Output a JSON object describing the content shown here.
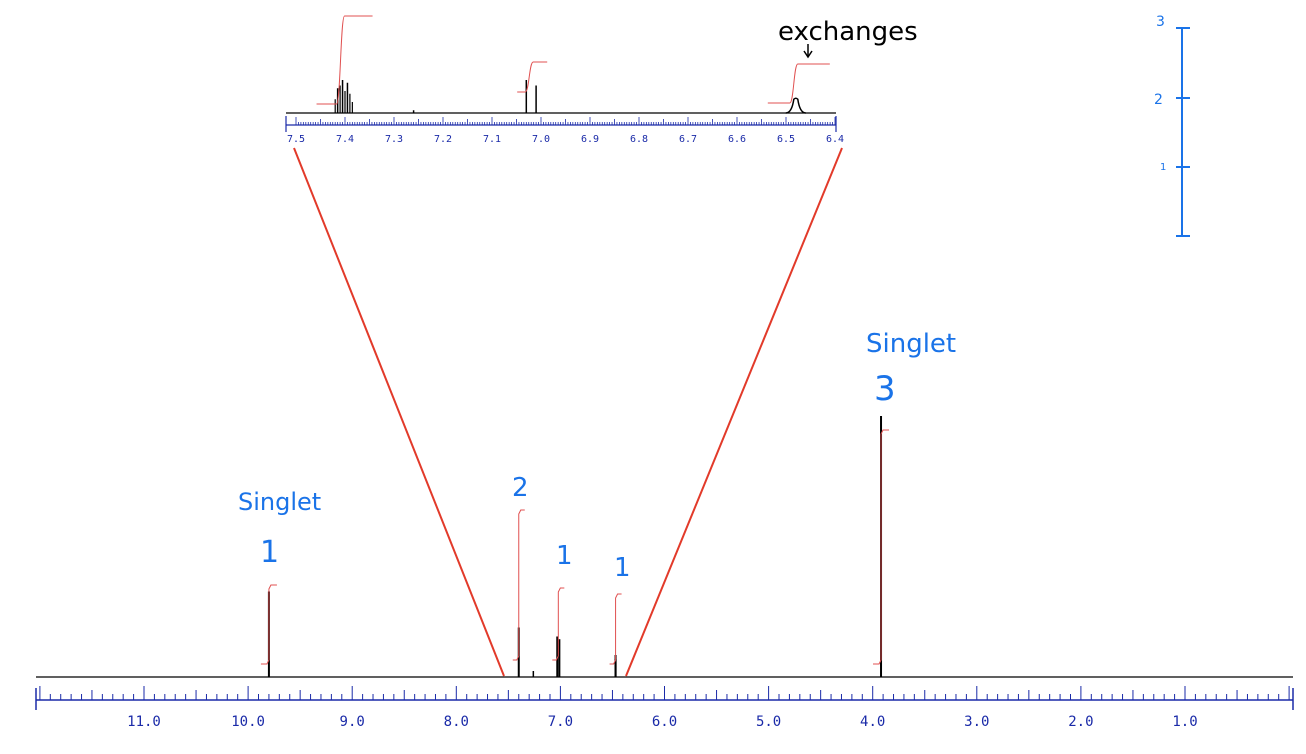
{
  "chart_data": {
    "type": "line",
    "main": {
      "xaxis_labels": [
        "11.0",
        "10.0",
        "9.0",
        "8.0",
        "7.0",
        "6.0",
        "5.0",
        "4.0",
        "3.0",
        "2.0",
        "1.0"
      ],
      "xlim": [
        12.0,
        0.0
      ],
      "axis_reversed": true,
      "peaks": [
        {
          "ppm": 9.8,
          "height": 0.95,
          "multiplicity": "Singlet",
          "integration": "1"
        },
        {
          "ppm": 7.4,
          "height": 0.55,
          "multiplicity": "",
          "integration": "2"
        },
        {
          "ppm": 7.03,
          "height": 0.45,
          "multiplicity": "",
          "integration": "1"
        },
        {
          "ppm": 7.01,
          "height": 0.42,
          "multiplicity": "",
          "integration": ""
        },
        {
          "ppm": 6.47,
          "height": 0.2,
          "multiplicity": "",
          "integration": "1"
        },
        {
          "ppm": 3.92,
          "height": 2.9,
          "multiplicity": "Singlet",
          "integration": "3"
        }
      ]
    },
    "inset": {
      "xaxis_labels": [
        "7.5",
        "7.4",
        "7.3",
        "7.2",
        "7.1",
        "7.0",
        "6.9",
        "6.8",
        "6.7",
        "6.6",
        "6.5",
        "6.4"
      ],
      "xlim": [
        7.5,
        6.4
      ],
      "annotation": "exchanges",
      "peaks": [
        {
          "ppm": 7.415,
          "height": 0.45
        },
        {
          "ppm": 7.405,
          "height": 0.6
        },
        {
          "ppm": 7.395,
          "height": 0.55
        },
        {
          "ppm": 7.26,
          "height": 0.05
        },
        {
          "ppm": 7.03,
          "height": 0.6
        },
        {
          "ppm": 7.01,
          "height": 0.5
        },
        {
          "ppm": 6.48,
          "height": 0.25,
          "broad": true
        }
      ]
    },
    "integration_scale": {
      "labels": [
        "3",
        "2",
        "1"
      ]
    },
    "colors": {
      "spectrum": "#000000",
      "axis": "#1a2aa8",
      "integral": "#e05050",
      "zoom_lines": "#e23a2a",
      "annotations": "#1a73e8"
    }
  }
}
